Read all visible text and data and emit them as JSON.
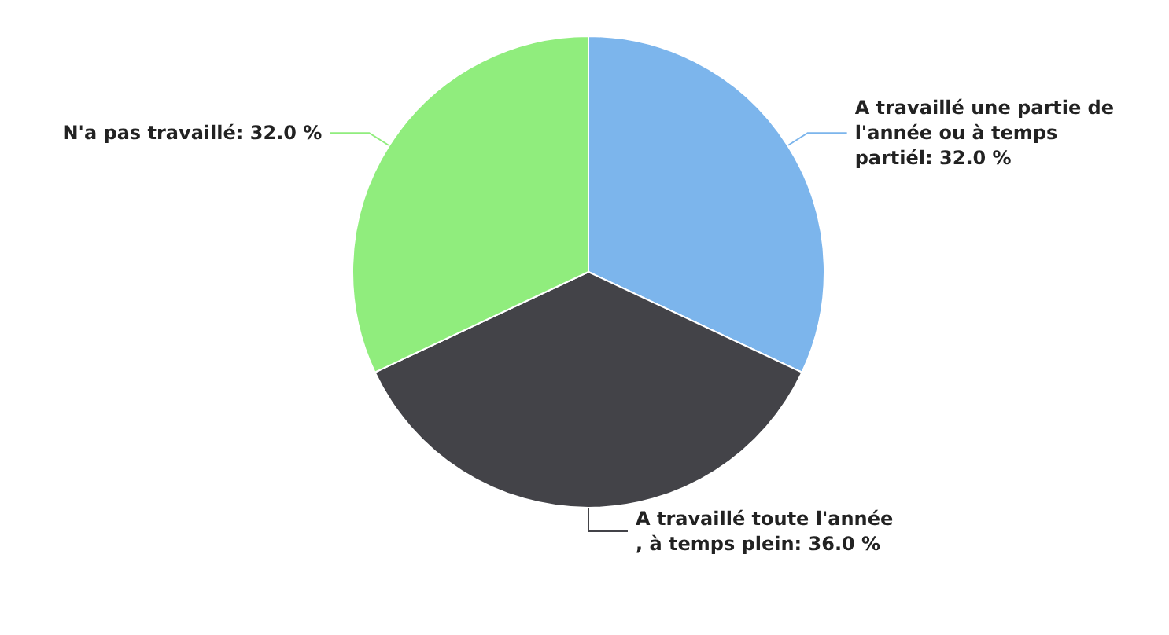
{
  "chart_data": {
    "type": "pie",
    "categories": [
      "A travaillé une partie de l'année ou à temps partiél",
      "A travaillé toute l'année, à temps plein",
      "N'a pas travaillé"
    ],
    "values": [
      32,
      36,
      32
    ],
    "colors": [
      "#7cb5ec",
      "#434348",
      "#90ed7d"
    ],
    "value_labels": [
      "32.0 %",
      "36.0 %",
      "32.0 %"
    ]
  }
}
